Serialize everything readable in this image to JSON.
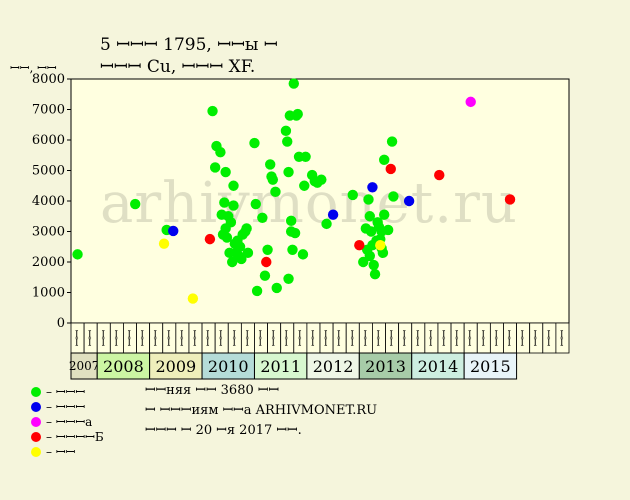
{
  "title": {
    "line1": "5 ꟷꟷꟷ 1795, ꟷꟷы ꟷ",
    "line2": "ꟷꟷꟷ Cu, ꟷꟷꟷ XF."
  },
  "watermark": "arhivmonet.ru",
  "info": {
    "line1": "ꟷꟷняя ꟷꟷ 3680 ꟷꟷ",
    "line2": "ꟷ ꟷꟷꟷиям ꟷꟷа ARHIVMONET.RU",
    "line3": "ꟷꟷꟷ ꟷ 20 ꟷя 2017 ꟷꟷ."
  },
  "legend": [
    {
      "label": "– ꟷꟷꟷ",
      "color": "#00ee00"
    },
    {
      "label": "– ꟷꟷꟷ",
      "color": "#0000ee"
    },
    {
      "label": "– ꟷꟷꟷа",
      "color": "#ff00ff"
    },
    {
      "label": "– ꟷꟷꟷꟷБ",
      "color": "#ff0000"
    },
    {
      "label": "– ꟷꟷ",
      "color": "#ffff00"
    }
  ],
  "colors": {
    "plot_bg": "#ffffe0",
    "green": "#00ee00",
    "blue": "#0000ee",
    "magenta": "#ff00ff",
    "red": "#ff0000",
    "yellow": "#ffff00"
  },
  "chart_data": {
    "type": "scatter",
    "ylabel": "ꟷꟷ, ꟷꟷ",
    "ylim": [
      0,
      8000
    ],
    "yticks": [
      0,
      1000,
      2000,
      3000,
      4000,
      5000,
      6000,
      7000,
      8000
    ],
    "grid": false,
    "x_unit": "quarter slot (0 = first column of 2007)",
    "quarter_labels": [
      "ꟷꟷ",
      "ꟷꟷ",
      "ꟷꟷ",
      "ꟷꟷ",
      "ꟷꟷ",
      "ꟷꟷ",
      "ꟷꟷ",
      "ꟷꟷ",
      "ꟷꟷ",
      "ꟷꟷ",
      "ꟷꟷ",
      "ꟷꟷ",
      "ꟷꟷ",
      "ꟷꟷ",
      "ꟷꟷ",
      "ꟷꟷ",
      "ꟷꟷ",
      "ꟷꟷ",
      "ꟷꟷ",
      "ꟷꟷ",
      "ꟷꟷ",
      "ꟷꟷ",
      "ꟷꟷ",
      "ꟷꟷ",
      "ꟷꟷ",
      "ꟷꟷ",
      "ꟷꟷ",
      "ꟷꟷ",
      "ꟷꟷ",
      "ꟷꟷ",
      "ꟷꟷ",
      "ꟷꟷ",
      "ꟷꟷ",
      "ꟷꟷ",
      "ꟷꟷ",
      "ꟷꟷ",
      "ꟷꟷ",
      "ꟷꟷ"
    ],
    "years": [
      {
        "label": "2007",
        "start": 0,
        "span": 2,
        "color": "#e0e0c0"
      },
      {
        "label": "2008",
        "start": 2,
        "span": 4,
        "color": "#ccf5a3"
      },
      {
        "label": "2009",
        "start": 6,
        "span": 4,
        "color": "#eeeebb"
      },
      {
        "label": "2010",
        "start": 10,
        "span": 4,
        "color": "#b5dcd8"
      },
      {
        "label": "2011",
        "start": 14,
        "span": 4,
        "color": "#d7f7cf"
      },
      {
        "label": "2012",
        "start": 18,
        "span": 4,
        "color": "#eef6e6"
      },
      {
        "label": "2013",
        "start": 22,
        "span": 4,
        "color": "#a7cca8"
      },
      {
        "label": "2014",
        "start": 26,
        "span": 4,
        "color": "#cdeee0"
      },
      {
        "label": "2015",
        "start": 30,
        "span": 4,
        "color": "#e8f4f8"
      }
    ],
    "series": [
      {
        "color": "#00ee00",
        "points": [
          [
            0.0,
            2250
          ],
          [
            4.4,
            3900
          ],
          [
            6.8,
            3050
          ],
          [
            10.3,
            6950
          ],
          [
            10.5,
            5100
          ],
          [
            10.6,
            5800
          ],
          [
            10.9,
            5600
          ],
          [
            11.0,
            3550
          ],
          [
            11.1,
            2900
          ],
          [
            11.2,
            3950
          ],
          [
            11.3,
            4950
          ],
          [
            11.3,
            3100
          ],
          [
            11.4,
            2800
          ],
          [
            11.5,
            3500
          ],
          [
            11.6,
            2300
          ],
          [
            11.7,
            3300
          ],
          [
            11.8,
            2000
          ],
          [
            11.9,
            4500
          ],
          [
            11.9,
            3850
          ],
          [
            12.0,
            2600
          ],
          [
            12.1,
            2300
          ],
          [
            12.2,
            2700
          ],
          [
            12.3,
            2200
          ],
          [
            12.4,
            2500
          ],
          [
            12.5,
            2100
          ],
          [
            12.6,
            2900
          ],
          [
            12.8,
            3000
          ],
          [
            12.9,
            3100
          ],
          [
            13.0,
            2300
          ],
          [
            13.5,
            5900
          ],
          [
            13.6,
            3900
          ],
          [
            13.7,
            1050
          ],
          [
            14.1,
            3450
          ],
          [
            14.3,
            1550
          ],
          [
            14.5,
            2400
          ],
          [
            14.7,
            5200
          ],
          [
            14.8,
            4800
          ],
          [
            14.9,
            4700
          ],
          [
            15.1,
            4300
          ],
          [
            15.2,
            1150
          ],
          [
            15.9,
            6300
          ],
          [
            16.0,
            5950
          ],
          [
            16.1,
            4950
          ],
          [
            16.2,
            6800
          ],
          [
            16.3,
            3000
          ],
          [
            16.3,
            3350
          ],
          [
            16.4,
            2400
          ],
          [
            16.5,
            7850
          ],
          [
            16.6,
            2950
          ],
          [
            16.7,
            6800
          ],
          [
            16.8,
            6850
          ],
          [
            16.9,
            5450
          ],
          [
            17.2,
            2250
          ],
          [
            17.3,
            4500
          ],
          [
            17.4,
            5450
          ],
          [
            16.1,
            1450
          ],
          [
            17.9,
            4850
          ],
          [
            18.1,
            4650
          ],
          [
            18.3,
            4600
          ],
          [
            18.6,
            4700
          ],
          [
            19.0,
            3250
          ],
          [
            21.0,
            4200
          ],
          [
            21.8,
            2000
          ],
          [
            22.0,
            3100
          ],
          [
            22.1,
            2400
          ],
          [
            22.2,
            4050
          ],
          [
            22.3,
            3500
          ],
          [
            22.3,
            2200
          ],
          [
            22.4,
            3000
          ],
          [
            22.5,
            2550
          ],
          [
            22.6,
            1900
          ],
          [
            22.7,
            1600
          ],
          [
            22.8,
            2700
          ],
          [
            22.9,
            3300
          ],
          [
            23.0,
            3150
          ],
          [
            23.1,
            2750
          ],
          [
            23.2,
            2450
          ],
          [
            23.2,
            3000
          ],
          [
            23.3,
            2300
          ],
          [
            23.4,
            3550
          ],
          [
            23.4,
            5350
          ],
          [
            23.7,
            3050
          ],
          [
            24.0,
            5950
          ],
          [
            24.1,
            4150
          ]
        ]
      },
      {
        "color": "#0000ee",
        "points": [
          [
            7.3,
            3020
          ],
          [
            19.5,
            3550
          ],
          [
            22.5,
            4450
          ],
          [
            25.3,
            4000
          ]
        ]
      },
      {
        "color": "#ff00ff",
        "points": [
          [
            30.0,
            7250
          ]
        ]
      },
      {
        "color": "#ff0000",
        "points": [
          [
            10.1,
            2750
          ],
          [
            14.4,
            2000
          ],
          [
            21.5,
            2550
          ],
          [
            23.9,
            5050
          ],
          [
            27.6,
            4850
          ],
          [
            33.0,
            4050
          ]
        ]
      },
      {
        "color": "#ffff00",
        "points": [
          [
            6.6,
            2600
          ],
          [
            8.8,
            800
          ],
          [
            23.1,
            2550
          ]
        ]
      }
    ]
  }
}
